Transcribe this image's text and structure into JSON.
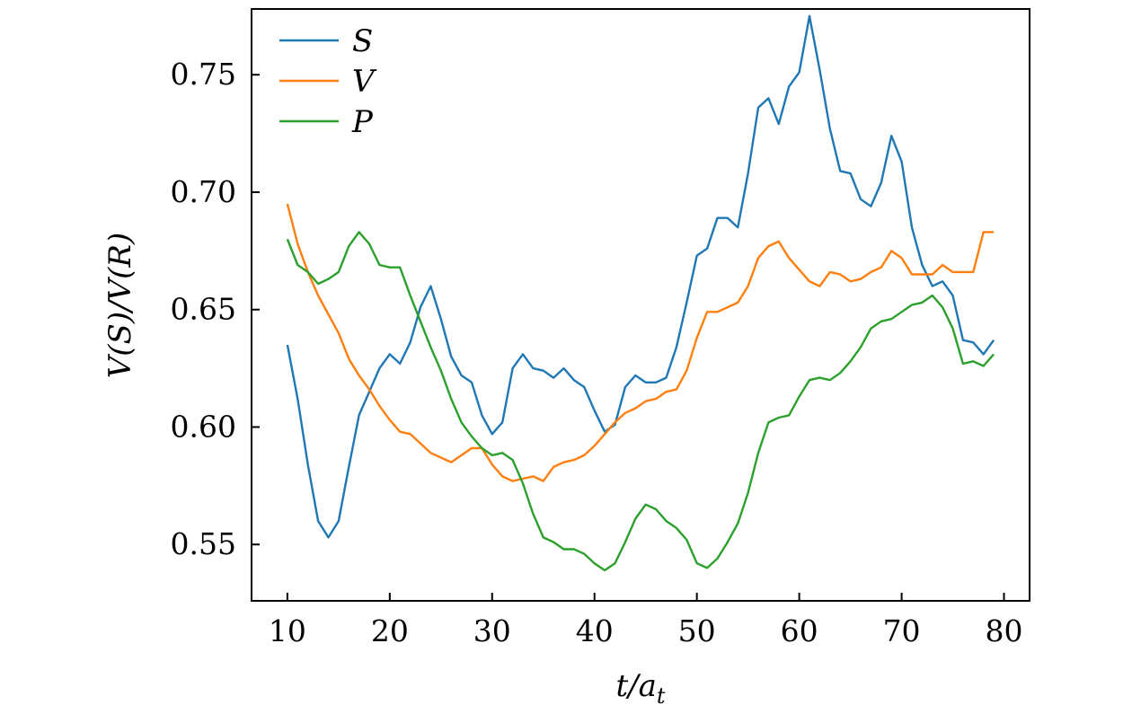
{
  "chart_data": {
    "type": "line",
    "xlabel": "t/a",
    "xlabel_sub": "t",
    "ylabel": "V(S)/V(R)",
    "xlim": [
      6.5,
      82.5
    ],
    "ylim": [
      0.526,
      0.778
    ],
    "xticks": [
      "10",
      "20",
      "30",
      "40",
      "50",
      "60",
      "70",
      "80"
    ],
    "yticks": [
      "0.55",
      "0.60",
      "0.65",
      "0.70",
      "0.75"
    ],
    "legend_position": "top-left",
    "grid": false,
    "x": [
      10,
      11,
      12,
      13,
      14,
      15,
      16,
      17,
      18,
      19,
      20,
      21,
      22,
      23,
      24,
      25,
      26,
      27,
      28,
      29,
      30,
      31,
      32,
      33,
      34,
      35,
      36,
      37,
      38,
      39,
      40,
      41,
      42,
      43,
      44,
      45,
      46,
      47,
      48,
      49,
      50,
      51,
      52,
      53,
      54,
      55,
      56,
      57,
      58,
      59,
      60,
      61,
      62,
      63,
      64,
      65,
      66,
      67,
      68,
      69,
      70,
      71,
      72,
      73,
      74,
      75,
      76,
      77,
      78,
      79
    ],
    "series": [
      {
        "name": "S",
        "color": "#1f77b4",
        "values": [
          0.635,
          0.612,
          0.584,
          0.56,
          0.553,
          0.56,
          0.583,
          0.605,
          0.615,
          0.625,
          0.631,
          0.627,
          0.636,
          0.651,
          0.66,
          0.646,
          0.63,
          0.622,
          0.619,
          0.605,
          0.597,
          0.602,
          0.625,
          0.631,
          0.625,
          0.624,
          0.621,
          0.625,
          0.62,
          0.617,
          0.607,
          0.598,
          0.601,
          0.617,
          0.622,
          0.619,
          0.619,
          0.621,
          0.634,
          0.653,
          0.673,
          0.676,
          0.689,
          0.689,
          0.685,
          0.708,
          0.736,
          0.74,
          0.729,
          0.745,
          0.751,
          0.775,
          0.752,
          0.727,
          0.709,
          0.708,
          0.697,
          0.694,
          0.704,
          0.724,
          0.713,
          0.685,
          0.669,
          0.66,
          0.662,
          0.656,
          0.637,
          0.636,
          0.631,
          0.637
        ]
      },
      {
        "name": "V",
        "color": "#ff7f0e",
        "values": [
          0.695,
          0.678,
          0.666,
          0.656,
          0.648,
          0.64,
          0.629,
          0.622,
          0.616,
          0.609,
          0.603,
          0.598,
          0.597,
          0.593,
          0.589,
          0.587,
          0.585,
          0.588,
          0.591,
          0.591,
          0.584,
          0.579,
          0.577,
          0.578,
          0.579,
          0.577,
          0.583,
          0.585,
          0.586,
          0.588,
          0.592,
          0.597,
          0.602,
          0.606,
          0.608,
          0.611,
          0.612,
          0.615,
          0.616,
          0.624,
          0.638,
          0.649,
          0.649,
          0.651,
          0.653,
          0.66,
          0.672,
          0.677,
          0.679,
          0.672,
          0.667,
          0.662,
          0.66,
          0.666,
          0.665,
          0.662,
          0.663,
          0.666,
          0.668,
          0.675,
          0.672,
          0.665,
          0.665,
          0.665,
          0.669,
          0.666,
          0.666,
          0.666,
          0.683,
          0.683
        ]
      },
      {
        "name": "P",
        "color": "#2ca02c",
        "values": [
          0.68,
          0.669,
          0.666,
          0.661,
          0.663,
          0.666,
          0.677,
          0.683,
          0.678,
          0.669,
          0.668,
          0.668,
          0.656,
          0.645,
          0.634,
          0.624,
          0.612,
          0.602,
          0.596,
          0.591,
          0.588,
          0.589,
          0.586,
          0.576,
          0.563,
          0.553,
          0.551,
          0.548,
          0.548,
          0.546,
          0.542,
          0.539,
          0.542,
          0.551,
          0.561,
          0.567,
          0.565,
          0.56,
          0.557,
          0.552,
          0.542,
          0.54,
          0.544,
          0.551,
          0.559,
          0.572,
          0.589,
          0.602,
          0.604,
          0.605,
          0.613,
          0.62,
          0.621,
          0.62,
          0.623,
          0.628,
          0.634,
          0.642,
          0.645,
          0.646,
          0.649,
          0.652,
          0.653,
          0.656,
          0.651,
          0.642,
          0.627,
          0.628,
          0.626,
          0.631
        ]
      }
    ]
  }
}
